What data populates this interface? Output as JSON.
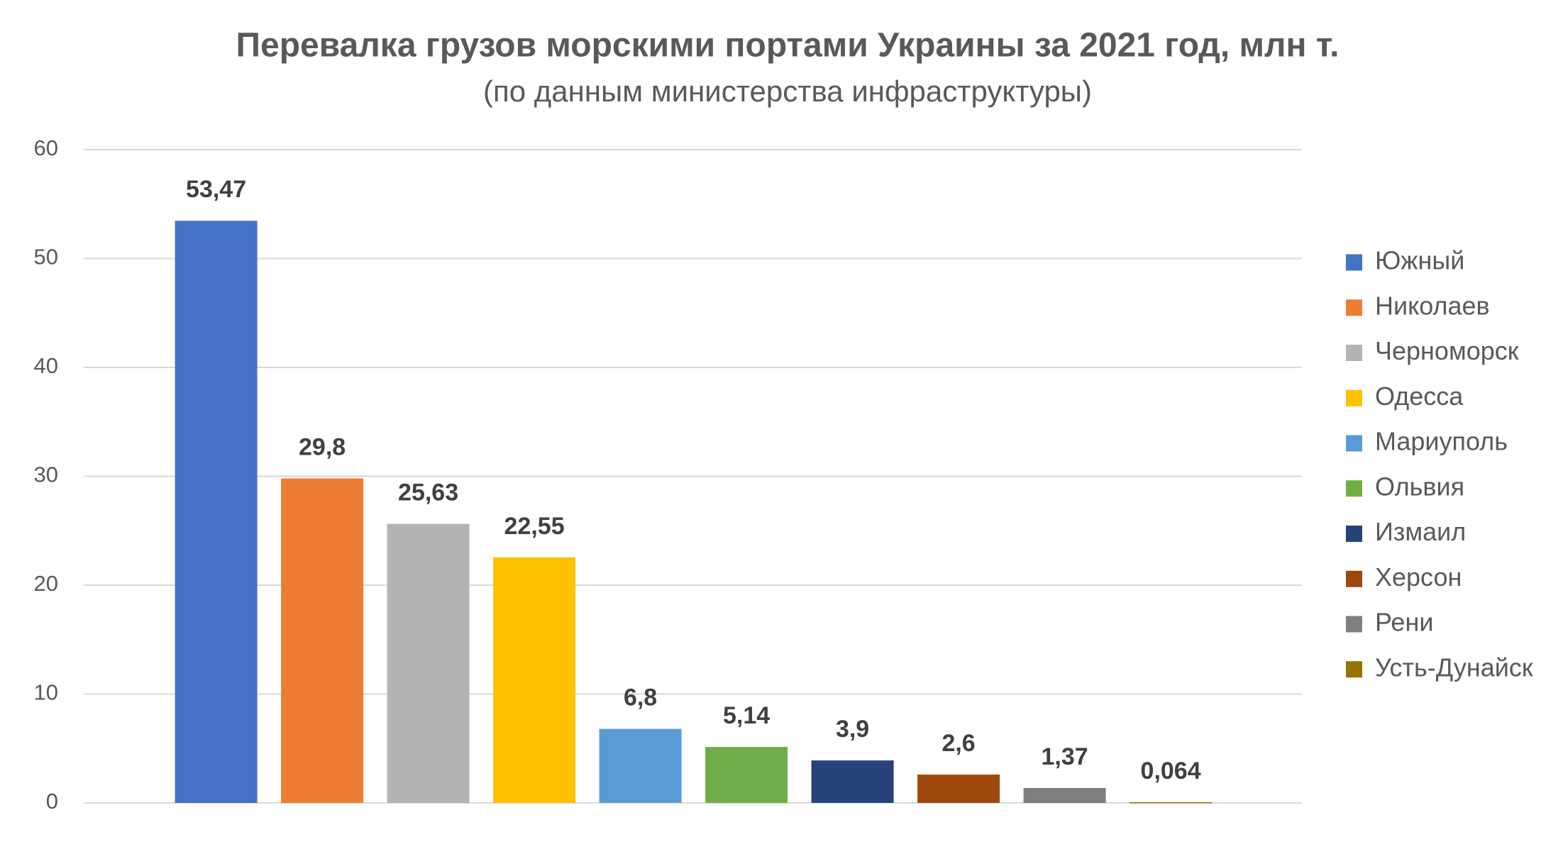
{
  "chart_data": {
    "type": "bar",
    "title": "Перевалка грузов морскими портами Украины за 2021 год, млн т.",
    "subtitle": "(по данным министерства инфраструктуры)",
    "series": [
      {
        "name": "Южный",
        "color": "#4472c4",
        "values": [
          53.47
        ],
        "value_labels": [
          "53,47"
        ]
      },
      {
        "name": "Николаев",
        "color": "#ed7d31",
        "values": [
          29.8
        ],
        "value_labels": [
          "29,8"
        ]
      },
      {
        "name": "Черноморск",
        "color": "#b4b4b4",
        "values": [
          25.63
        ],
        "value_labels": [
          "25,63"
        ]
      },
      {
        "name": "Одесса",
        "color": "#ffc000",
        "values": [
          22.55
        ],
        "value_labels": [
          "22,55"
        ]
      },
      {
        "name": "Мариуполь",
        "color": "#5b9bd5",
        "values": [
          6.8
        ],
        "value_labels": [
          "6,8"
        ]
      },
      {
        "name": "Ольвия",
        "color": "#70ad47",
        "values": [
          5.14
        ],
        "value_labels": [
          "5,14"
        ]
      },
      {
        "name": "Измаил",
        "color": "#264478",
        "values": [
          3.9
        ],
        "value_labels": [
          "3,9"
        ]
      },
      {
        "name": "Херсон",
        "color": "#9e480e",
        "values": [
          2.6
        ],
        "value_labels": [
          "2,6"
        ]
      },
      {
        "name": "Рени",
        "color": "#7f7f7f",
        "values": [
          1.37
        ],
        "value_labels": [
          "1,37"
        ]
      },
      {
        "name": "Усть-Дунайск",
        "color": "#997300",
        "values": [
          0.064
        ],
        "value_labels": [
          "0,064"
        ]
      }
    ],
    "ylim": [
      0,
      60
    ],
    "yticks": [
      0,
      10,
      20,
      30,
      40,
      50,
      60
    ],
    "grid": true,
    "legend": "right"
  }
}
